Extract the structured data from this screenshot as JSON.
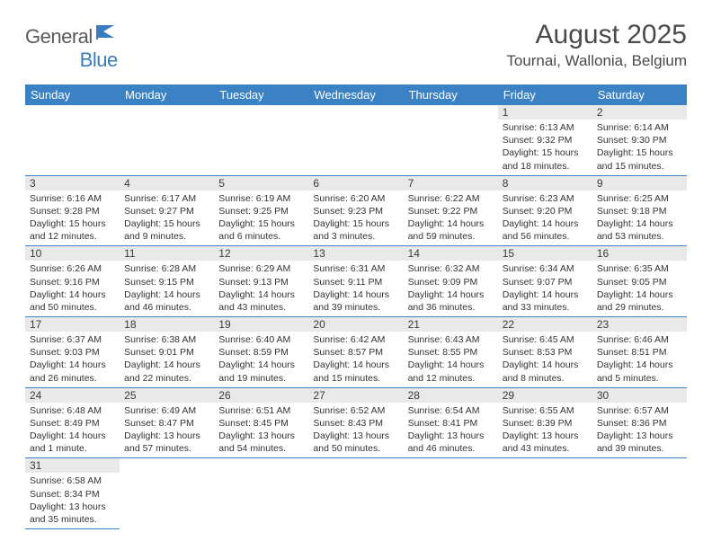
{
  "logo": {
    "text1": "General",
    "text2": "Blue"
  },
  "title": "August 2025",
  "location": "Tournai, Wallonia, Belgium",
  "colors": {
    "header_bg": "#3b82c4",
    "header_text": "#ffffff",
    "daynum_bg": "#e9e9e9",
    "cell_border": "#3b82c4",
    "logo_gray": "#5a5a5a",
    "logo_blue": "#3b7bbf",
    "title_color": "#4a4a4a",
    "body_text": "#333333",
    "background": "#ffffff"
  },
  "fonts": {
    "title_size_pt": 23,
    "location_size_pt": 13,
    "header_size_pt": 10,
    "daynum_size_pt": 9,
    "cell_size_pt": 8
  },
  "weekdays": [
    "Sunday",
    "Monday",
    "Tuesday",
    "Wednesday",
    "Thursday",
    "Friday",
    "Saturday"
  ],
  "first_weekday_index": 5,
  "days": [
    {
      "n": 1,
      "sunrise": "6:13 AM",
      "sunset": "9:32 PM",
      "daylight": "15 hours and 18 minutes."
    },
    {
      "n": 2,
      "sunrise": "6:14 AM",
      "sunset": "9:30 PM",
      "daylight": "15 hours and 15 minutes."
    },
    {
      "n": 3,
      "sunrise": "6:16 AM",
      "sunset": "9:28 PM",
      "daylight": "15 hours and 12 minutes."
    },
    {
      "n": 4,
      "sunrise": "6:17 AM",
      "sunset": "9:27 PM",
      "daylight": "15 hours and 9 minutes."
    },
    {
      "n": 5,
      "sunrise": "6:19 AM",
      "sunset": "9:25 PM",
      "daylight": "15 hours and 6 minutes."
    },
    {
      "n": 6,
      "sunrise": "6:20 AM",
      "sunset": "9:23 PM",
      "daylight": "15 hours and 3 minutes."
    },
    {
      "n": 7,
      "sunrise": "6:22 AM",
      "sunset": "9:22 PM",
      "daylight": "14 hours and 59 minutes."
    },
    {
      "n": 8,
      "sunrise": "6:23 AM",
      "sunset": "9:20 PM",
      "daylight": "14 hours and 56 minutes."
    },
    {
      "n": 9,
      "sunrise": "6:25 AM",
      "sunset": "9:18 PM",
      "daylight": "14 hours and 53 minutes."
    },
    {
      "n": 10,
      "sunrise": "6:26 AM",
      "sunset": "9:16 PM",
      "daylight": "14 hours and 50 minutes."
    },
    {
      "n": 11,
      "sunrise": "6:28 AM",
      "sunset": "9:15 PM",
      "daylight": "14 hours and 46 minutes."
    },
    {
      "n": 12,
      "sunrise": "6:29 AM",
      "sunset": "9:13 PM",
      "daylight": "14 hours and 43 minutes."
    },
    {
      "n": 13,
      "sunrise": "6:31 AM",
      "sunset": "9:11 PM",
      "daylight": "14 hours and 39 minutes."
    },
    {
      "n": 14,
      "sunrise": "6:32 AM",
      "sunset": "9:09 PM",
      "daylight": "14 hours and 36 minutes."
    },
    {
      "n": 15,
      "sunrise": "6:34 AM",
      "sunset": "9:07 PM",
      "daylight": "14 hours and 33 minutes."
    },
    {
      "n": 16,
      "sunrise": "6:35 AM",
      "sunset": "9:05 PM",
      "daylight": "14 hours and 29 minutes."
    },
    {
      "n": 17,
      "sunrise": "6:37 AM",
      "sunset": "9:03 PM",
      "daylight": "14 hours and 26 minutes."
    },
    {
      "n": 18,
      "sunrise": "6:38 AM",
      "sunset": "9:01 PM",
      "daylight": "14 hours and 22 minutes."
    },
    {
      "n": 19,
      "sunrise": "6:40 AM",
      "sunset": "8:59 PM",
      "daylight": "14 hours and 19 minutes."
    },
    {
      "n": 20,
      "sunrise": "6:42 AM",
      "sunset": "8:57 PM",
      "daylight": "14 hours and 15 minutes."
    },
    {
      "n": 21,
      "sunrise": "6:43 AM",
      "sunset": "8:55 PM",
      "daylight": "14 hours and 12 minutes."
    },
    {
      "n": 22,
      "sunrise": "6:45 AM",
      "sunset": "8:53 PM",
      "daylight": "14 hours and 8 minutes."
    },
    {
      "n": 23,
      "sunrise": "6:46 AM",
      "sunset": "8:51 PM",
      "daylight": "14 hours and 5 minutes."
    },
    {
      "n": 24,
      "sunrise": "6:48 AM",
      "sunset": "8:49 PM",
      "daylight": "14 hours and 1 minute."
    },
    {
      "n": 25,
      "sunrise": "6:49 AM",
      "sunset": "8:47 PM",
      "daylight": "13 hours and 57 minutes."
    },
    {
      "n": 26,
      "sunrise": "6:51 AM",
      "sunset": "8:45 PM",
      "daylight": "13 hours and 54 minutes."
    },
    {
      "n": 27,
      "sunrise": "6:52 AM",
      "sunset": "8:43 PM",
      "daylight": "13 hours and 50 minutes."
    },
    {
      "n": 28,
      "sunrise": "6:54 AM",
      "sunset": "8:41 PM",
      "daylight": "13 hours and 46 minutes."
    },
    {
      "n": 29,
      "sunrise": "6:55 AM",
      "sunset": "8:39 PM",
      "daylight": "13 hours and 43 minutes."
    },
    {
      "n": 30,
      "sunrise": "6:57 AM",
      "sunset": "8:36 PM",
      "daylight": "13 hours and 39 minutes."
    },
    {
      "n": 31,
      "sunrise": "6:58 AM",
      "sunset": "8:34 PM",
      "daylight": "13 hours and 35 minutes."
    }
  ],
  "labels": {
    "sunrise_prefix": "Sunrise: ",
    "sunset_prefix": "Sunset: ",
    "daylight_prefix": "Daylight: "
  }
}
